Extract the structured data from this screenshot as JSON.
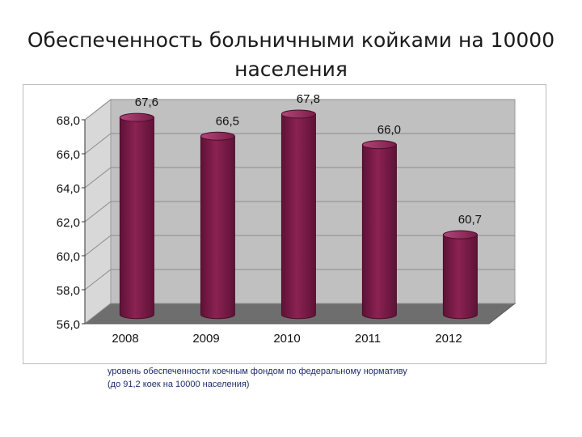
{
  "title_line1": "Обеспеченность больничными койками на 10000",
  "title_line2": "населения",
  "footnote_line1": "уровень обеспеченности коечным фондом по федеральному нормативу",
  "footnote_line2": "(до 91,2 коек на 10000 населения)",
  "colors": {
    "bar": "#8b2252",
    "bar_dark": "#5e1236",
    "wall": "#c0c0c0",
    "floor": "#6e6e6e"
  },
  "chart_data": {
    "type": "bar",
    "categories": [
      "2008",
      "2009",
      "2010",
      "2011",
      "2012"
    ],
    "values": [
      67.6,
      66.5,
      67.8,
      66.0,
      60.7
    ],
    "value_labels": [
      "67,6",
      "66,5",
      "67,8",
      "66,0",
      "60,7"
    ],
    "y_ticks": [
      "56,0",
      "58,0",
      "60,0",
      "62,0",
      "64,0",
      "66,0",
      "68,0"
    ],
    "ylim": [
      56,
      68
    ],
    "grid": true,
    "legend": "none",
    "style": "3d-cylinder"
  }
}
